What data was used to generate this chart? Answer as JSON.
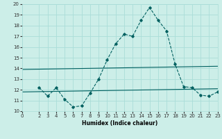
{
  "xlabel": "Humidex (Indice chaleur)",
  "background_color": "#cceee8",
  "grid_color": "#aaddd8",
  "line_color": "#006060",
  "xlim": [
    0,
    23
  ],
  "ylim": [
    10,
    20
  ],
  "xticks": [
    0,
    2,
    3,
    4,
    5,
    6,
    7,
    8,
    9,
    10,
    11,
    12,
    13,
    14,
    15,
    16,
    17,
    18,
    19,
    20,
    21,
    22,
    23
  ],
  "yticks": [
    10,
    11,
    12,
    13,
    14,
    15,
    16,
    17,
    18,
    19,
    20
  ],
  "line1_x": [
    0,
    23
  ],
  "line1_y": [
    13.9,
    14.2
  ],
  "line2_x": [
    0,
    23
  ],
  "line2_y": [
    11.8,
    12.1
  ],
  "line3_x": [
    2,
    3,
    4,
    5,
    6,
    7,
    8,
    9,
    10,
    11,
    12,
    13,
    14,
    15,
    16,
    17,
    18,
    19,
    20,
    21,
    22,
    23
  ],
  "line3_y": [
    12.2,
    11.4,
    12.2,
    11.1,
    10.4,
    10.5,
    11.7,
    13.0,
    14.8,
    16.3,
    17.2,
    17.0,
    18.5,
    19.7,
    18.5,
    17.5,
    14.4,
    12.3,
    12.2,
    11.5,
    11.4,
    11.8
  ]
}
